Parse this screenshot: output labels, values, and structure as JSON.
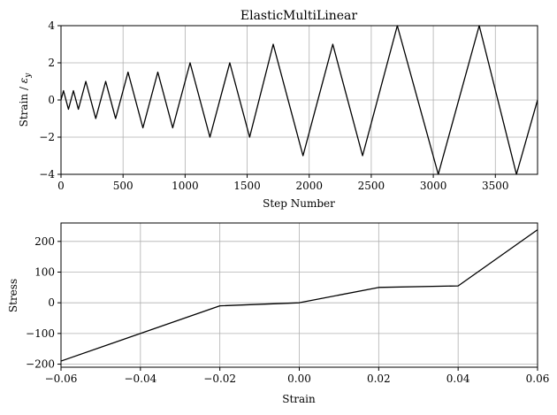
{
  "chart_data": [
    {
      "type": "line",
      "title": "ElasticMultiLinear",
      "xlabel": "Step Number",
      "ylabel": "Strain / ε_y",
      "ylabel_main": "Strain / ",
      "ylabel_sym": "ε",
      "ylabel_sub": "y",
      "xlim": [
        0,
        3840
      ],
      "ylim": [
        -4,
        4
      ],
      "xticks": [
        0,
        500,
        1000,
        1500,
        2000,
        2500,
        3000,
        3500
      ],
      "xtick_labels": [
        "0",
        "500",
        "1000",
        "1500",
        "2000",
        "2500",
        "3000",
        "3500"
      ],
      "yticks": [
        -4,
        -2,
        0,
        2,
        4
      ],
      "ytick_labels": [
        "−4",
        "−2",
        "0",
        "2",
        "4"
      ],
      "grid": true,
      "series": [
        {
          "x": [
            0,
            20,
            60,
            100,
            140,
            200,
            280,
            360,
            440,
            540,
            660,
            780,
            900,
            1040,
            1200,
            1360,
            1520,
            1710,
            1950,
            2190,
            2430,
            2710,
            3040,
            3370,
            3670,
            3840
          ],
          "y": [
            0,
            0.5,
            -0.5,
            0.5,
            -0.5,
            1,
            -1,
            1,
            -1,
            1.5,
            -1.5,
            1.5,
            -1.5,
            2,
            -2,
            2,
            -2,
            3,
            -3,
            3,
            -3,
            4,
            -4,
            4,
            -4,
            0
          ]
        }
      ]
    },
    {
      "type": "line",
      "title": "",
      "xlabel": "Strain",
      "ylabel": "Stress",
      "xlim": [
        -0.06,
        0.06
      ],
      "ylim": [
        -210,
        260
      ],
      "xticks": [
        -0.06,
        -0.04,
        -0.02,
        0.0,
        0.02,
        0.04,
        0.06
      ],
      "xtick_labels": [
        "−0.06",
        "−0.04",
        "−0.02",
        "0.00",
        "0.02",
        "0.04",
        "0.06"
      ],
      "yticks": [
        -200,
        -100,
        0,
        100,
        200
      ],
      "ytick_labels": [
        "−200",
        "−100",
        "0",
        "100",
        "200"
      ],
      "grid": true,
      "series": [
        {
          "x": [
            -0.06,
            -0.02,
            0.0,
            0.02,
            0.04,
            0.06
          ],
          "y": [
            -190,
            -10,
            0,
            50,
            55,
            238
          ]
        }
      ]
    }
  ]
}
